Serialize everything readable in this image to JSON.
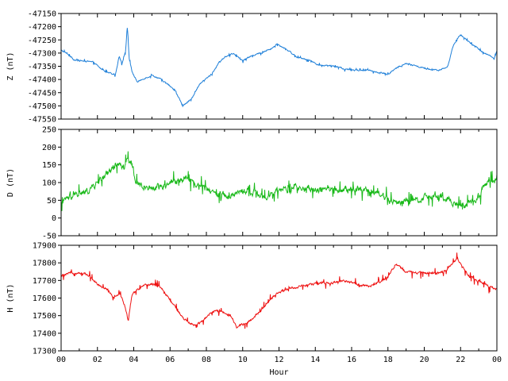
{
  "chart_data": {
    "type": "line",
    "x": {
      "label": "Hour",
      "range": [
        0,
        24
      ],
      "major_ticks": [
        0,
        2,
        4,
        6,
        8,
        10,
        12,
        14,
        16,
        18,
        20,
        22,
        24
      ],
      "tick_labels": [
        "00",
        "02",
        "04",
        "06",
        "08",
        "10",
        "12",
        "14",
        "16",
        "18",
        "20",
        "22",
        "00"
      ],
      "minor_step": 1
    },
    "panels": [
      {
        "name": "Z",
        "ylabel": "Z (nT)",
        "color": "#1e7fd8",
        "ylim": [
          -47550,
          -47150
        ],
        "yticks": [
          -47550,
          -47500,
          -47450,
          -47400,
          -47350,
          -47300,
          -47250,
          -47200,
          -47150
        ],
        "ytick_labels": [
          "-47550",
          "-47500",
          "-47450",
          "-47400",
          "-47350",
          "-47300",
          "-47250",
          "-47200",
          "-47150"
        ],
        "points": [
          [
            0,
            -47290
          ],
          [
            0.3,
            -47300
          ],
          [
            0.7,
            -47325
          ],
          [
            1.2,
            -47330
          ],
          [
            1.8,
            -47335
          ],
          [
            2.2,
            -47360
          ],
          [
            2.6,
            -47375
          ],
          [
            3.0,
            -47380
          ],
          [
            3.2,
            -47310
          ],
          [
            3.35,
            -47340
          ],
          [
            3.55,
            -47290
          ],
          [
            3.65,
            -47200
          ],
          [
            3.75,
            -47320
          ],
          [
            3.9,
            -47370
          ],
          [
            4.2,
            -47410
          ],
          [
            4.6,
            -47395
          ],
          [
            5.0,
            -47385
          ],
          [
            5.4,
            -47395
          ],
          [
            5.9,
            -47420
          ],
          [
            6.3,
            -47445
          ],
          [
            6.7,
            -47500
          ],
          [
            7.0,
            -47485
          ],
          [
            7.3,
            -47460
          ],
          [
            7.6,
            -47420
          ],
          [
            8.0,
            -47395
          ],
          [
            8.3,
            -47380
          ],
          [
            8.6,
            -47345
          ],
          [
            9.0,
            -47315
          ],
          [
            9.5,
            -47300
          ],
          [
            10.0,
            -47330
          ],
          [
            10.5,
            -47310
          ],
          [
            11.0,
            -47300
          ],
          [
            11.5,
            -47285
          ],
          [
            11.9,
            -47265
          ],
          [
            12.4,
            -47285
          ],
          [
            13.0,
            -47315
          ],
          [
            13.6,
            -47325
          ],
          [
            14.2,
            -47345
          ],
          [
            15.0,
            -47350
          ],
          [
            15.6,
            -47360
          ],
          [
            16.2,
            -47365
          ],
          [
            17.0,
            -47365
          ],
          [
            17.6,
            -47375
          ],
          [
            18.0,
            -47380
          ],
          [
            18.5,
            -47355
          ],
          [
            19.0,
            -47340
          ],
          [
            19.6,
            -47350
          ],
          [
            20.2,
            -47360
          ],
          [
            20.8,
            -47365
          ],
          [
            21.3,
            -47350
          ],
          [
            21.6,
            -47270
          ],
          [
            22.0,
            -47230
          ],
          [
            22.4,
            -47255
          ],
          [
            22.8,
            -47275
          ],
          [
            23.2,
            -47295
          ],
          [
            23.6,
            -47310
          ],
          [
            23.85,
            -47320
          ],
          [
            24,
            -47290
          ]
        ],
        "noise": 4,
        "spikiness": 8
      },
      {
        "name": "D",
        "ylabel": "D (nT)",
        "color": "#19b919",
        "ylim": [
          -50,
          250
        ],
        "yticks": [
          -50,
          0,
          50,
          100,
          150,
          200,
          250
        ],
        "ytick_labels": [
          "-50",
          "0",
          "50",
          "100",
          "150",
          "200",
          "250"
        ],
        "points": [
          [
            0,
            35
          ],
          [
            0.3,
            55
          ],
          [
            0.8,
            65
          ],
          [
            1.3,
            70
          ],
          [
            1.8,
            90
          ],
          [
            2.2,
            110
          ],
          [
            2.5,
            125
          ],
          [
            2.8,
            140
          ],
          [
            3.1,
            155
          ],
          [
            3.4,
            140
          ],
          [
            3.65,
            170
          ],
          [
            3.85,
            160
          ],
          [
            4.1,
            100
          ],
          [
            4.5,
            90
          ],
          [
            5.0,
            85
          ],
          [
            5.5,
            90
          ],
          [
            6.0,
            100
          ],
          [
            6.5,
            105
          ],
          [
            6.9,
            120
          ],
          [
            7.3,
            100
          ],
          [
            7.8,
            85
          ],
          [
            8.3,
            75
          ],
          [
            8.8,
            65
          ],
          [
            9.3,
            60
          ],
          [
            9.8,
            75
          ],
          [
            10.3,
            80
          ],
          [
            10.7,
            70
          ],
          [
            11.0,
            60
          ],
          [
            11.3,
            55
          ],
          [
            11.7,
            70
          ],
          [
            12.2,
            80
          ],
          [
            12.8,
            85
          ],
          [
            13.4,
            80
          ],
          [
            14.0,
            80
          ],
          [
            14.6,
            85
          ],
          [
            15.2,
            80
          ],
          [
            15.8,
            80
          ],
          [
            16.4,
            80
          ],
          [
            17.0,
            80
          ],
          [
            17.5,
            70
          ],
          [
            17.9,
            55
          ],
          [
            18.3,
            45
          ],
          [
            18.7,
            45
          ],
          [
            19.2,
            50
          ],
          [
            19.8,
            55
          ],
          [
            20.4,
            60
          ],
          [
            21.0,
            55
          ],
          [
            21.5,
            50
          ],
          [
            21.9,
            30
          ],
          [
            22.3,
            35
          ],
          [
            22.7,
            50
          ],
          [
            23.1,
            70
          ],
          [
            23.4,
            95
          ],
          [
            23.7,
            110
          ],
          [
            23.9,
            100
          ],
          [
            24,
            120
          ]
        ],
        "noise": 14,
        "spikiness": 30
      },
      {
        "name": "H",
        "ylabel": "H (nT)",
        "color": "#ee1010",
        "ylim": [
          17300,
          17900
        ],
        "yticks": [
          17300,
          17400,
          17500,
          17600,
          17700,
          17800,
          17900
        ],
        "ytick_labels": [
          "17300",
          "17400",
          "17500",
          "17600",
          "17700",
          "17800",
          "17900"
        ],
        "points": [
          [
            0,
            17725
          ],
          [
            0.4,
            17740
          ],
          [
            0.9,
            17745
          ],
          [
            1.3,
            17740
          ],
          [
            1.7,
            17715
          ],
          [
            2.0,
            17680
          ],
          [
            2.3,
            17660
          ],
          [
            2.6,
            17650
          ],
          [
            2.9,
            17600
          ],
          [
            3.2,
            17630
          ],
          [
            3.5,
            17560
          ],
          [
            3.7,
            17470
          ],
          [
            3.9,
            17620
          ],
          [
            4.2,
            17650
          ],
          [
            4.6,
            17670
          ],
          [
            5.0,
            17680
          ],
          [
            5.4,
            17670
          ],
          [
            5.8,
            17620
          ],
          [
            6.2,
            17560
          ],
          [
            6.6,
            17500
          ],
          [
            7.0,
            17460
          ],
          [
            7.4,
            17445
          ],
          [
            7.8,
            17470
          ],
          [
            8.2,
            17510
          ],
          [
            8.6,
            17530
          ],
          [
            9.0,
            17520
          ],
          [
            9.4,
            17490
          ],
          [
            9.7,
            17430
          ],
          [
            10.0,
            17450
          ],
          [
            10.4,
            17470
          ],
          [
            10.8,
            17510
          ],
          [
            11.2,
            17550
          ],
          [
            11.6,
            17600
          ],
          [
            12.0,
            17630
          ],
          [
            12.4,
            17650
          ],
          [
            12.8,
            17660
          ],
          [
            13.4,
            17670
          ],
          [
            14.0,
            17680
          ],
          [
            14.6,
            17685
          ],
          [
            15.2,
            17690
          ],
          [
            15.6,
            17700
          ],
          [
            16.0,
            17690
          ],
          [
            16.5,
            17670
          ],
          [
            17.0,
            17670
          ],
          [
            17.5,
            17690
          ],
          [
            18.0,
            17720
          ],
          [
            18.4,
            17790
          ],
          [
            18.6,
            17780
          ],
          [
            19.0,
            17750
          ],
          [
            19.6,
            17745
          ],
          [
            20.2,
            17745
          ],
          [
            20.8,
            17740
          ],
          [
            21.2,
            17760
          ],
          [
            21.6,
            17800
          ],
          [
            21.8,
            17825
          ],
          [
            22.1,
            17780
          ],
          [
            22.5,
            17720
          ],
          [
            22.9,
            17700
          ],
          [
            23.3,
            17680
          ],
          [
            23.7,
            17660
          ],
          [
            24,
            17650
          ]
        ],
        "noise": 10,
        "spikiness": 35
      }
    ]
  }
}
